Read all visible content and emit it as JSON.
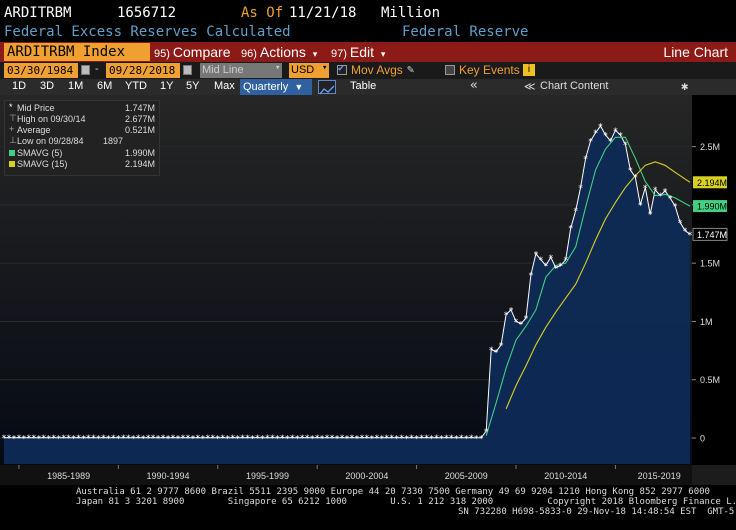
{
  "header": {
    "ticker": "ARDITRBM",
    "value": "1656712",
    "as_of_label": "As Of",
    "as_of_date": "11/21/18",
    "units": "Million",
    "description": "Federal Excess Reserves Calculated",
    "source": "Federal Reserve"
  },
  "command_bar": {
    "security": "ARDITRBM Index",
    "compare_num": "95)",
    "compare_label": "Compare",
    "actions_num": "96)",
    "actions_label": "Actions",
    "edit_num": "97)",
    "edit_label": "Edit",
    "chart_name": "Line Chart"
  },
  "options": {
    "start_date": "03/30/1984",
    "end_date": "09/28/2018",
    "dash": "-",
    "price_field": "Mid Line",
    "currency": "USD",
    "mov_avgs_label": "Mov Avgs",
    "key_events_label": "Key Events"
  },
  "ranges": {
    "items": [
      "1D",
      "3D",
      "1M",
      "6M",
      "YTD",
      "1Y",
      "5Y",
      "Max"
    ],
    "frequency": "Quarterly",
    "table_label": "Table",
    "chart_content_label": "Chart Content",
    "collapse_glyph": "«"
  },
  "legend": {
    "mid_price_label": "Mid Price",
    "mid_price_value": "1.747M",
    "high_label": "High on 09/30/14",
    "high_value": "2.677M",
    "average_label": "Average",
    "average_value": "0.521M",
    "low_label": "Low on 09/28/84",
    "low_value": "1897",
    "smavg5_label": "SMAVG (5)",
    "smavg5_value": "1.990M",
    "smavg15_label": "SMAVG (15)",
    "smavg15_value": "2.194M"
  },
  "colors": {
    "price": "#ffffff",
    "smavg5": "#40d080",
    "smavg15": "#d8d020",
    "area_fill": "#0e2a55",
    "accent_orange": "#f0a030",
    "command_red": "#8c1a16"
  },
  "chart_data": {
    "type": "line",
    "xlabels": [
      "1985-1989",
      "1990-1994",
      "1995-1999",
      "2000-2004",
      "2005-2009",
      "2010-2014",
      "2015-2019"
    ],
    "yticks": [
      "2.5M",
      "2M",
      "1.5M",
      "1M",
      "0.5M",
      "0"
    ],
    "ylim": [
      0,
      2900000
    ],
    "last_value_labels": [
      "2.194M",
      "1.990M",
      "1.747M"
    ],
    "series": [
      {
        "name": "Mid Price",
        "x": [
          2008.25,
          2008.5,
          2008.75,
          2009.0,
          2009.25,
          2009.5,
          2009.75,
          2010.0,
          2010.25,
          2010.5,
          2010.75,
          2011.0,
          2011.25,
          2011.5,
          2011.75,
          2012.0,
          2012.25,
          2012.5,
          2012.75,
          2013.0,
          2013.25,
          2013.5,
          2013.75,
          2014.0,
          2014.25,
          2014.5,
          2014.75,
          2015.0,
          2015.25,
          2015.5,
          2015.75,
          2016.0,
          2016.25,
          2016.5,
          2016.75,
          2017.0,
          2017.25,
          2017.5,
          2017.75,
          2018.0,
          2018.25,
          2018.5,
          2018.75
        ],
        "values": [
          2000,
          60000,
          760000,
          740000,
          800000,
          1060000,
          1100000,
          1000000,
          980000,
          1030000,
          1400000,
          1580000,
          1530000,
          1480000,
          1550000,
          1460000,
          1480000,
          1530000,
          1800000,
          1950000,
          2150000,
          2400000,
          2550000,
          2620000,
          2677000,
          2600000,
          2550000,
          2640000,
          2600000,
          2520000,
          2300000,
          2240000,
          2000000,
          2150000,
          1920000,
          2130000,
          2080000,
          2120000,
          2060000,
          1990000,
          1850000,
          1780000,
          1747000
        ]
      },
      {
        "name": "SMAVG (5)",
        "x": [
          2008.5,
          2009.0,
          2009.5,
          2010.0,
          2010.5,
          2011.0,
          2011.5,
          2012.0,
          2012.5,
          2013.0,
          2013.5,
          2014.0,
          2014.5,
          2015.0,
          2015.5,
          2016.0,
          2016.5,
          2017.0,
          2017.5,
          2018.0,
          2018.75
        ],
        "values": [
          20000,
          300000,
          600000,
          840000,
          960000,
          1100000,
          1380000,
          1480000,
          1500000,
          1640000,
          1980000,
          2300000,
          2480000,
          2580000,
          2580000,
          2400000,
          2200000,
          2080000,
          2090000,
          2060000,
          1990000
        ]
      },
      {
        "name": "SMAVG (15)",
        "x": [
          2009.5,
          2010.0,
          2010.5,
          2011.0,
          2011.5,
          2012.0,
          2012.5,
          2013.0,
          2013.5,
          2014.0,
          2014.5,
          2015.0,
          2015.5,
          2016.0,
          2016.5,
          2017.0,
          2017.5,
          2018.0,
          2018.75
        ],
        "values": [
          250000,
          450000,
          620000,
          800000,
          950000,
          1080000,
          1200000,
          1320000,
          1500000,
          1700000,
          1880000,
          2020000,
          2150000,
          2250000,
          2340000,
          2370000,
          2340000,
          2280000,
          2194000
        ]
      }
    ]
  },
  "footer": {
    "line1": "Australia 61 2 9777 8600 Brazil 5511 2395 9000 Europe 44 20 7330 7500 Germany 49 69 9204 1210 Hong Kong 852 2977 6000",
    "line2a": "Japan 81 3 3201 8900        Singapore 65 6212 1000        U.S. 1 212 318 2000          Copyright 2018 Bloomberg Finance L.P.",
    "line2b": "SN 732280 H698-5833-0 29-Nov-18 14:48:54 EST  GMT-5:00"
  }
}
